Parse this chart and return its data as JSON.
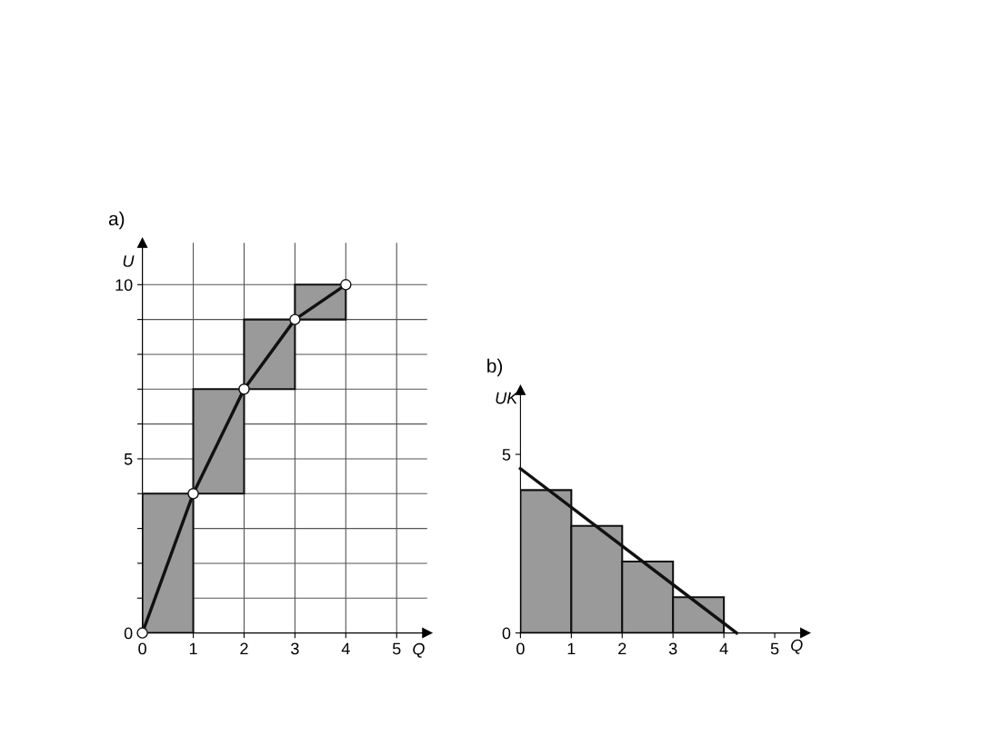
{
  "chart_data": [
    {
      "type": "bar",
      "title": "a)",
      "xlabel": "Q",
      "ylabel": "U",
      "x": [
        0.5,
        1.5,
        2.5,
        3.5
      ],
      "base": [
        0,
        4,
        7,
        9
      ],
      "values": [
        4,
        3,
        2,
        1
      ],
      "color": "#9a9a9a",
      "series": [
        {
          "type": "line",
          "x": [
            0,
            1,
            2,
            3,
            4
          ],
          "values": [
            0,
            4,
            7,
            9,
            10
          ],
          "color": "#111111",
          "marker": "circle"
        }
      ],
      "xlim": [
        0,
        5.6
      ],
      "ylim": [
        0,
        11.2
      ],
      "xticks": [
        0,
        1,
        2,
        3,
        4,
        5
      ],
      "yticks": [
        0,
        {
          "value": 1,
          "label": null
        },
        {
          "value": 2,
          "label": null
        },
        {
          "value": 3,
          "label": null
        },
        {
          "value": 4,
          "label": null
        },
        5,
        {
          "value": 6,
          "label": null
        },
        {
          "value": 7,
          "label": null
        },
        {
          "value": 8,
          "label": null
        },
        {
          "value": 9,
          "label": null
        },
        10
      ],
      "grid": true
    },
    {
      "type": "bar",
      "title": "b)",
      "xlabel": "Q",
      "ylabel": "UK",
      "x": [
        0.5,
        1.5,
        2.5,
        3.5
      ],
      "values": [
        4,
        3,
        2,
        1
      ],
      "color": "#9a9a9a",
      "series": [
        {
          "type": "line",
          "x": [
            0,
            4.25
          ],
          "values": [
            4.6,
            0
          ],
          "color": "#111111"
        }
      ],
      "xlim": [
        0,
        5.6
      ],
      "ylim": [
        0,
        6.8
      ],
      "xticks": [
        0,
        1,
        2,
        3,
        4,
        5
      ],
      "yticks": [
        0,
        5
      ]
    }
  ]
}
